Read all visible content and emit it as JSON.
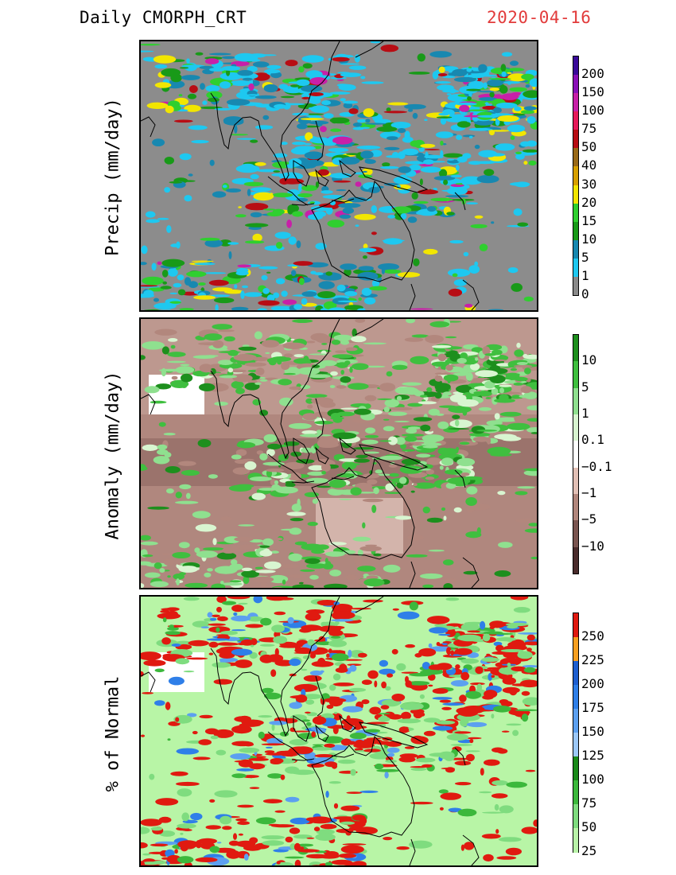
{
  "header": {
    "product": "Daily  CMORPH_CRT",
    "date": "2020-04-16"
  },
  "panels": [
    {
      "ylabel": "Precip  (mm/day)",
      "colorbar": {
        "ticks": [
          "200",
          "150",
          "100",
          "75",
          "50",
          "40",
          "30",
          "20",
          "15",
          "10",
          "5",
          "1",
          "0"
        ],
        "colors": [
          "#3a0a9a",
          "#8a10b8",
          "#c820a8",
          "#e61a5a",
          "#b80d14",
          "#9a6a18",
          "#d7a000",
          "#f2e600",
          "#2fcf2f",
          "#189a18",
          "#1888b0",
          "#1ec8f0",
          "#8a8a8a"
        ]
      },
      "background": "#8c8c8c"
    },
    {
      "ylabel": "Anomaly  (mm/day)",
      "colorbar": {
        "ticks": [
          "10",
          "5",
          "1",
          "0.1",
          "−0.1",
          "−1",
          "−5",
          "−10"
        ],
        "colors": [
          "#1d8f1d",
          "#3fbf3f",
          "#8fe08f",
          "#d8f5d0",
          "#ffffff",
          "#e2c0b6",
          "#b2877d",
          "#7a5550",
          "#4a2c2c"
        ]
      },
      "background": "#b0877e"
    },
    {
      "ylabel": "%  of  Normal",
      "colorbar": {
        "ticks": [
          "250",
          "225",
          "200",
          "175",
          "150",
          "125",
          "100",
          "75",
          "50",
          "25"
        ],
        "colors": [
          "#e01a10",
          "#f8a020",
          "#1e5fd0",
          "#2f7fe8",
          "#5ca0f0",
          "#9cc8f8",
          "#1a8a1a",
          "#3cb83c",
          "#7fdc7f",
          "#b9f3a8"
        ]
      },
      "background": "#b8f5a6"
    }
  ]
}
